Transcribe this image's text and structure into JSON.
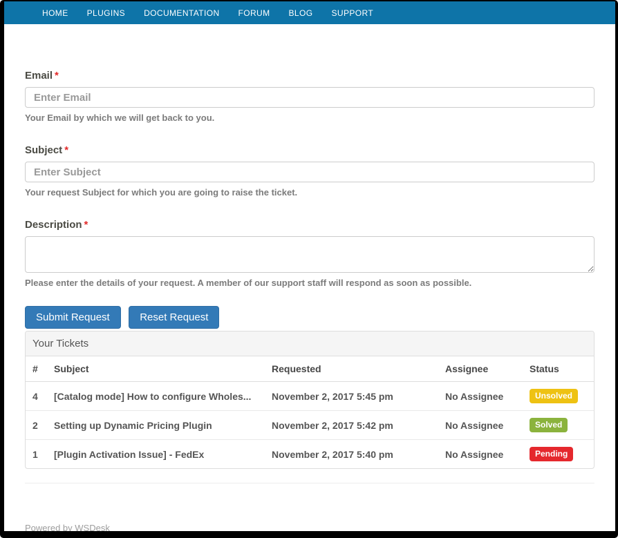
{
  "colors": {
    "navbar": "#0e74a8",
    "button": "#337ab7",
    "button_border": "#2e6da4",
    "required": "#e22a2a",
    "badge_unsolved": "#eec213",
    "badge_solved": "#8bb33d",
    "badge_pending": "#e5282d"
  },
  "nav": {
    "items": [
      "HOME",
      "PLUGINS",
      "DOCUMENTATION",
      "FORUM",
      "BLOG",
      "SUPPORT"
    ]
  },
  "form": {
    "email": {
      "label": "Email",
      "required_mark": "*",
      "placeholder": "Enter Email",
      "help": "Your Email by which we will get back to you."
    },
    "subject": {
      "label": "Subject",
      "required_mark": "*",
      "placeholder": "Enter Subject",
      "help": "Your request Subject for which you are going to raise the ticket."
    },
    "description": {
      "label": "Description",
      "required_mark": "*",
      "value": "",
      "help": "Please enter the details of your request. A member of our support staff will respond as soon as possible."
    },
    "buttons": {
      "submit": "Submit Request",
      "reset": "Reset Request"
    }
  },
  "tickets": {
    "title": "Your Tickets",
    "columns": [
      "#",
      "Subject",
      "Requested",
      "Assignee",
      "Status"
    ],
    "rows": [
      {
        "id": "4",
        "subject": "[Catalog mode] How to configure Wholes...",
        "requested": "November 2, 2017 5:45 pm",
        "assignee": "No Assignee",
        "status": "Unsolved",
        "status_color": "#eec213"
      },
      {
        "id": "2",
        "subject": "Setting up Dynamic Pricing Plugin",
        "requested": "November 2, 2017 5:42 pm",
        "assignee": "No Assignee",
        "status": "Solved",
        "status_color": "#8bb33d"
      },
      {
        "id": "1",
        "subject": "[Plugin Activation Issue] - FedEx",
        "requested": "November 2, 2017 5:40 pm",
        "assignee": "No Assignee",
        "status": "Pending",
        "status_color": "#e5282d"
      }
    ]
  },
  "footer": {
    "text": "Powered by WSDesk"
  }
}
